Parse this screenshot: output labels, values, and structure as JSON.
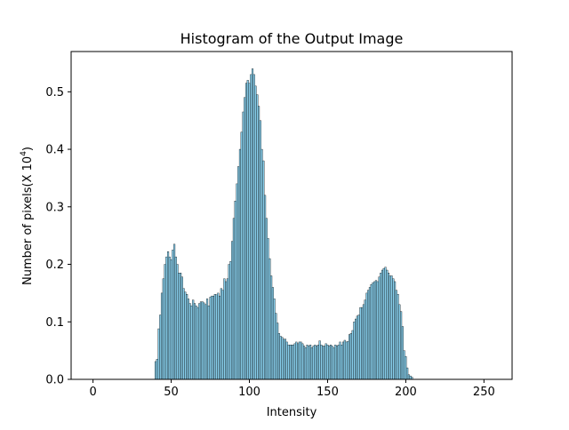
{
  "chart_data": {
    "type": "bar",
    "title": "Histogram of the Output Image",
    "xlabel": "Intensity",
    "ylabel": "Number of pixels(X 10",
    "ylabel_superscript": "4",
    "ylabel_suffix": ")",
    "xlim": [
      -14,
      268
    ],
    "ylim": [
      0,
      0.57
    ],
    "xticks": [
      0,
      50,
      100,
      150,
      200,
      250
    ],
    "xtick_labels": [
      "0",
      "50",
      "100",
      "150",
      "200",
      "250"
    ],
    "yticks": [
      0.0,
      0.1,
      0.2,
      0.3,
      0.4,
      0.5
    ],
    "ytick_labels": [
      "0.0",
      "0.1",
      "0.2",
      "0.3",
      "0.4",
      "0.5"
    ],
    "grid": false,
    "legend": "none",
    "bar_color": "#87ceeb",
    "edge_color": "#000000",
    "bar_width": 1,
    "x": [
      40,
      41,
      42,
      43,
      44,
      45,
      46,
      47,
      48,
      49,
      50,
      51,
      52,
      53,
      54,
      55,
      56,
      57,
      58,
      59,
      60,
      61,
      62,
      63,
      64,
      65,
      66,
      67,
      68,
      69,
      70,
      71,
      72,
      73,
      74,
      75,
      76,
      77,
      78,
      79,
      80,
      81,
      82,
      83,
      84,
      85,
      86,
      87,
      88,
      89,
      90,
      91,
      92,
      93,
      94,
      95,
      96,
      97,
      98,
      99,
      100,
      101,
      102,
      103,
      104,
      105,
      106,
      107,
      108,
      109,
      110,
      111,
      112,
      113,
      114,
      115,
      116,
      117,
      118,
      119,
      120,
      121,
      122,
      123,
      124,
      125,
      126,
      127,
      128,
      129,
      130,
      131,
      132,
      133,
      134,
      135,
      136,
      137,
      138,
      139,
      140,
      141,
      142,
      143,
      144,
      145,
      146,
      147,
      148,
      149,
      150,
      151,
      152,
      153,
      154,
      155,
      156,
      157,
      158,
      159,
      160,
      161,
      162,
      163,
      164,
      165,
      166,
      167,
      168,
      169,
      170,
      171,
      172,
      173,
      174,
      175,
      176,
      177,
      178,
      179,
      180,
      181,
      182,
      183,
      184,
      185,
      186,
      187,
      188,
      189,
      190,
      191,
      192,
      193,
      194,
      195,
      196,
      197,
      198,
      199,
      200,
      201,
      202,
      203,
      204
    ],
    "values": [
      0.031,
      0.035,
      0.088,
      0.112,
      0.15,
      0.175,
      0.2,
      0.213,
      0.222,
      0.213,
      0.208,
      0.225,
      0.235,
      0.213,
      0.2,
      0.185,
      0.185,
      0.178,
      0.158,
      0.152,
      0.148,
      0.14,
      0.132,
      0.128,
      0.138,
      0.132,
      0.128,
      0.125,
      0.132,
      0.135,
      0.135,
      0.133,
      0.13,
      0.14,
      0.128,
      0.143,
      0.145,
      0.145,
      0.148,
      0.147,
      0.15,
      0.145,
      0.158,
      0.155,
      0.175,
      0.17,
      0.175,
      0.2,
      0.205,
      0.24,
      0.28,
      0.31,
      0.34,
      0.37,
      0.4,
      0.43,
      0.465,
      0.49,
      0.515,
      0.52,
      0.515,
      0.53,
      0.54,
      0.53,
      0.51,
      0.495,
      0.475,
      0.45,
      0.4,
      0.38,
      0.32,
      0.28,
      0.245,
      0.21,
      0.18,
      0.16,
      0.14,
      0.115,
      0.098,
      0.08,
      0.075,
      0.073,
      0.07,
      0.07,
      0.065,
      0.06,
      0.06,
      0.06,
      0.06,
      0.062,
      0.065,
      0.062,
      0.065,
      0.065,
      0.062,
      0.058,
      0.055,
      0.06,
      0.058,
      0.06,
      0.055,
      0.058,
      0.06,
      0.058,
      0.06,
      0.067,
      0.06,
      0.058,
      0.058,
      0.062,
      0.06,
      0.058,
      0.06,
      0.058,
      0.055,
      0.06,
      0.058,
      0.06,
      0.065,
      0.06,
      0.065,
      0.068,
      0.065,
      0.066,
      0.078,
      0.08,
      0.085,
      0.1,
      0.105,
      0.11,
      0.112,
      0.125,
      0.125,
      0.13,
      0.138,
      0.15,
      0.155,
      0.16,
      0.165,
      0.168,
      0.17,
      0.172,
      0.17,
      0.178,
      0.185,
      0.19,
      0.193,
      0.195,
      0.19,
      0.185,
      0.18,
      0.18,
      0.175,
      0.17,
      0.155,
      0.148,
      0.13,
      0.118,
      0.092,
      0.05,
      0.04,
      0.02,
      0.008,
      0.006,
      0.004
    ]
  }
}
